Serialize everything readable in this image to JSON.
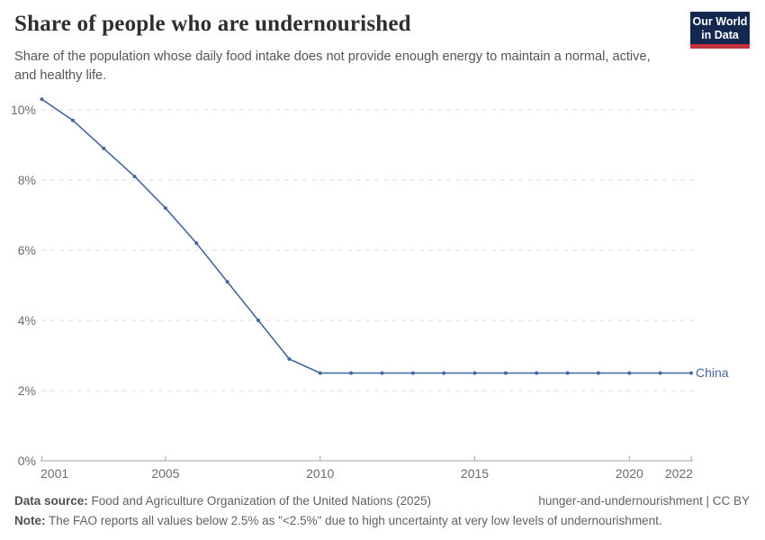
{
  "header": {
    "title": "Share of people who are undernourished",
    "subtitle_line1": "Share of the population whose daily food intake does not provide enough energy to maintain a normal, active,",
    "subtitle_line2": "and healthy life.",
    "logo": {
      "line1": "Our World",
      "line2": "in Data"
    }
  },
  "chart_data": {
    "type": "line",
    "title": "Share of people who are undernourished",
    "x": [
      2001,
      2002,
      2003,
      2004,
      2005,
      2006,
      2007,
      2008,
      2009,
      2010,
      2011,
      2012,
      2013,
      2014,
      2015,
      2016,
      2017,
      2018,
      2019,
      2020,
      2021,
      2022
    ],
    "series": [
      {
        "name": "China",
        "color": "#4666a0",
        "values": [
          10.3,
          9.7,
          8.9,
          8.1,
          7.2,
          6.2,
          5.1,
          4.0,
          2.9,
          2.5,
          2.5,
          2.5,
          2.5,
          2.5,
          2.5,
          2.5,
          2.5,
          2.5,
          2.5,
          2.5,
          2.5,
          2.5
        ]
      }
    ],
    "xlabel": "",
    "ylabel": "",
    "xticks": [
      2001,
      2005,
      2010,
      2015,
      2020,
      2022
    ],
    "yticks": [
      0,
      2,
      4,
      6,
      8,
      10
    ],
    "ytick_suffix": "%",
    "ylim": [
      0,
      10.5
    ],
    "xlim": [
      2001,
      2022
    ],
    "grid": "horizontal-dashed",
    "legend_position": "end-of-line-label"
  },
  "footer": {
    "data_source_label": "Data source:",
    "data_source_text": " Food and Agriculture Organization of the United Nations (2025)",
    "attribution": "hunger-and-undernourishment | CC BY",
    "note_label": "Note:",
    "note_text": " The FAO reports all values below 2.5% as \"<2.5%\" due to high uncertainty at very low levels of undernourishment."
  },
  "colors": {
    "accent_line": "#4666a0",
    "logo_navy": "#13274F",
    "logo_red": "#C5303E",
    "gridline": "#dcdcdc",
    "axis": "#a3a3a3"
  }
}
